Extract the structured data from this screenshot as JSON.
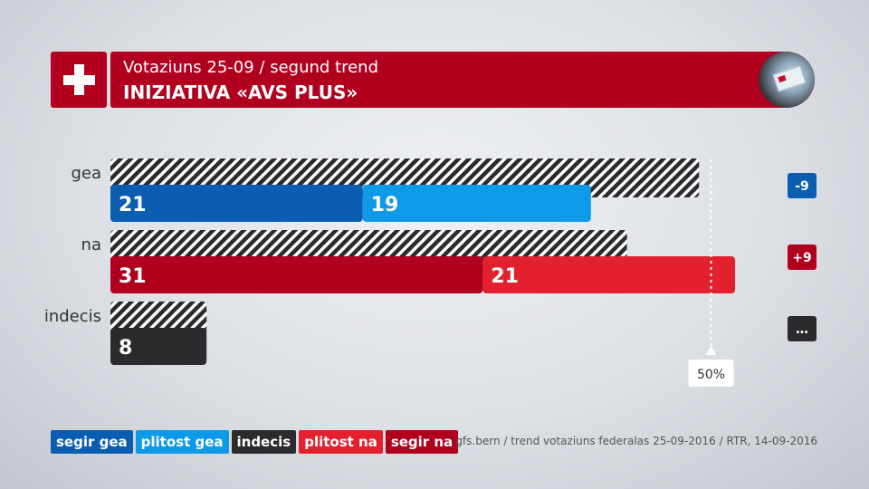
{
  "header": {
    "subtitle": "Votaziuns 25-09 / segund trend",
    "title": "INIZIATIVA «AVS PLUS»"
  },
  "chart_data": {
    "type": "bar",
    "orientation": "horizontal",
    "stacked": true,
    "categories": [
      "gea",
      "na",
      "indecis"
    ],
    "series": [
      {
        "name": "segir gea",
        "category": "gea",
        "value": 21,
        "color": "#0a5db0"
      },
      {
        "name": "plitost gea",
        "category": "gea",
        "value": 19,
        "color": "#0e9ae8"
      },
      {
        "name": "segir na",
        "category": "na",
        "value": 31,
        "color": "#b0001e"
      },
      {
        "name": "plitost na",
        "category": "na",
        "value": 21,
        "color": "#e2202e"
      },
      {
        "name": "indecis",
        "category": "indecis",
        "value": 8,
        "color": "#2b2b2d"
      }
    ],
    "previous": [
      {
        "category": "gea",
        "value": 49
      },
      {
        "category": "na",
        "value": 43
      },
      {
        "category": "indecis",
        "value": 8
      }
    ],
    "changes": [
      {
        "category": "gea",
        "label": "-9",
        "color": "#0a5db0"
      },
      {
        "category": "na",
        "label": "+9",
        "color": "#b0001e"
      },
      {
        "category": "indecis",
        "label": "…",
        "color": "#2b2b2d"
      }
    ],
    "reference_line": {
      "value": 50,
      "label": "50%"
    },
    "xlim": [
      0,
      100
    ],
    "legend": [
      {
        "label": "segir gea",
        "color": "#0a5db0"
      },
      {
        "label": "plitost gea",
        "color": "#0e9ae8"
      },
      {
        "label": "indecis",
        "color": "#2b2b2d"
      },
      {
        "label": "plitost na",
        "color": "#e2202e"
      },
      {
        "label": "segir na",
        "color": "#b0001e"
      }
    ],
    "legend_position": "bottom-left"
  },
  "source": "gfs.bern / trend votaziuns federalas 25-09-2016 / RTR, 14-09-2016"
}
